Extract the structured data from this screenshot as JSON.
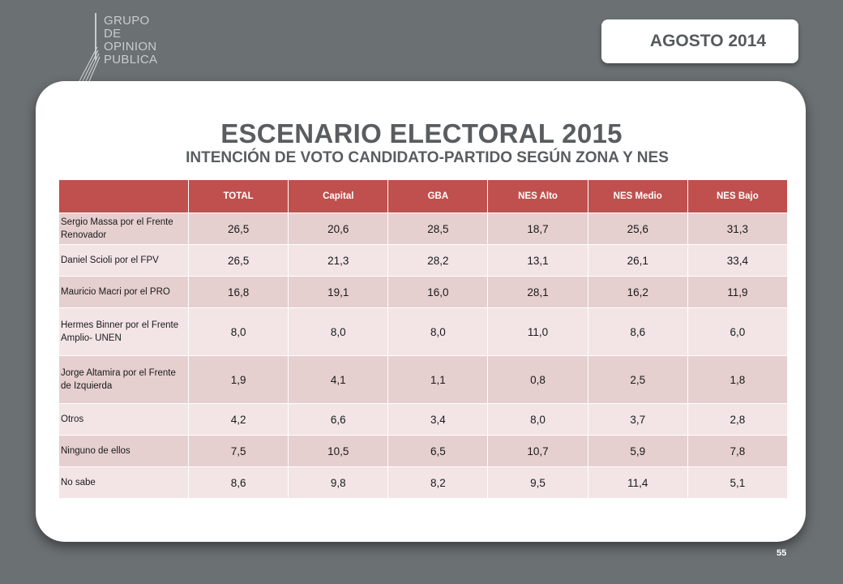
{
  "logo": {
    "lines": [
      "GRUPO",
      "DE",
      "OPINION",
      "PUBLICA"
    ]
  },
  "date_badge": "AGOSTO 2014",
  "title": "ESCENARIO ELECTORAL 2015",
  "subtitle": "INTENCIÓN DE VOTO CANDIDATO-PARTIDO SEGÚN ZONA Y NES",
  "table": {
    "columns": [
      "",
      "TOTAL",
      "Capital",
      "GBA",
      "NES Alto",
      "NES Medio",
      "NES Bajo"
    ],
    "rows": [
      {
        "label": "Sergio Massa por el Frente Renovador",
        "values": [
          "26,5",
          "20,6",
          "28,5",
          "18,7",
          "25,6",
          "31,3"
        ]
      },
      {
        "label": "Daniel Scioli por el FPV",
        "values": [
          "26,5",
          "21,3",
          "28,2",
          "13,1",
          "26,1",
          "33,4"
        ]
      },
      {
        "label": "Mauricio Macri por el PRO",
        "values": [
          "16,8",
          "19,1",
          "16,0",
          "28,1",
          "16,2",
          "11,9"
        ]
      },
      {
        "label": "Hermes Binner por el Frente Amplio- UNEN",
        "values": [
          "8,0",
          "8,0",
          "8,0",
          "11,0",
          "8,6",
          "6,0"
        ]
      },
      {
        "label": "Jorge Altamira por el Frente de Izquierda",
        "values": [
          "1,9",
          "4,1",
          "1,1",
          "0,8",
          "2,5",
          "1,8"
        ]
      },
      {
        "label": "Otros",
        "values": [
          "4,2",
          "6,6",
          "3,4",
          "8,0",
          "3,7",
          "2,8"
        ]
      },
      {
        "label": "Ninguno de ellos",
        "values": [
          "7,5",
          "10,5",
          "6,5",
          "10,7",
          "5,9",
          "7,8"
        ]
      },
      {
        "label": "No sabe",
        "values": [
          "8,6",
          "9,8",
          "8,2",
          "9,5",
          "11,4",
          "5,1"
        ]
      }
    ]
  },
  "page_number": "55",
  "colors": {
    "background": "#6b7072",
    "header_red": "#c0504d",
    "row_dark": "#e6cfcf",
    "row_light": "#f3e5e5",
    "title_gray": "#595d60"
  }
}
